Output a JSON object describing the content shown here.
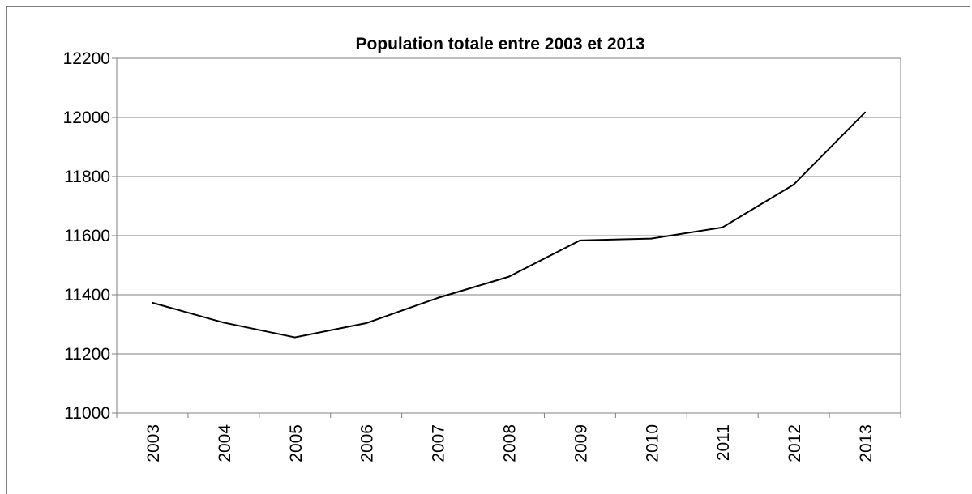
{
  "chart_data": {
    "type": "line",
    "title": "Population totale entre 2003 et 2013",
    "xlabel": "",
    "ylabel": "",
    "categories": [
      "2003",
      "2004",
      "2005",
      "2006",
      "2007",
      "2008",
      "2009",
      "2010",
      "2011",
      "2012",
      "2013"
    ],
    "series": [
      {
        "values": [
          11373,
          11306,
          11256,
          11304,
          11389,
          11461,
          11584,
          11590,
          11628,
          11773,
          12017
        ]
      }
    ],
    "ylim": [
      11000,
      12200
    ],
    "yticks": [
      11000,
      11200,
      11400,
      11600,
      11800,
      12000,
      12200
    ],
    "grid": true,
    "legend": "none",
    "colors": {
      "line": "#000000",
      "grid": "#808080",
      "axis": "#808080"
    }
  }
}
